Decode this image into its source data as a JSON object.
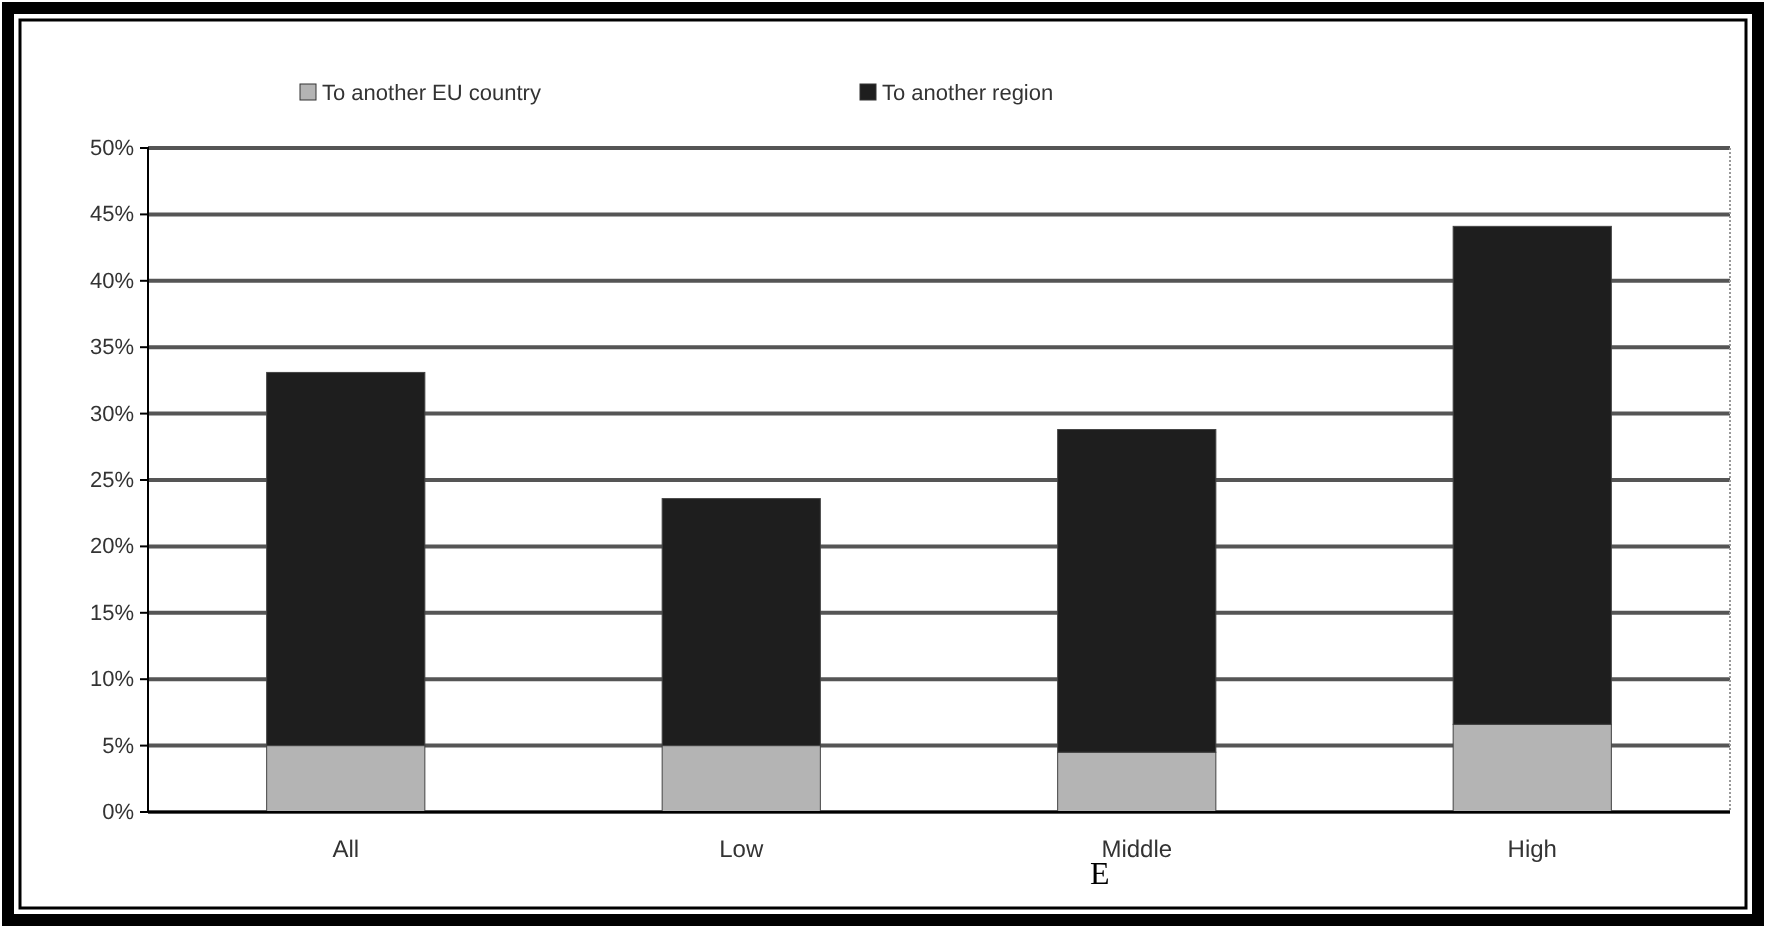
{
  "chart_data": {
    "type": "bar",
    "stacked": true,
    "categories": [
      "All",
      "Low",
      "Middle",
      "High"
    ],
    "series": [
      {
        "name": "To another EU country",
        "color": "#b4b4b4",
        "values": [
          5,
          5,
          4.5,
          6.6
        ]
      },
      {
        "name": "To another region",
        "color": "#1e1e1e",
        "values": [
          28.1,
          18.6,
          24.3,
          37.5
        ]
      }
    ],
    "ylim": [
      0,
      50
    ],
    "yticks": [
      {
        "value": 0,
        "label": "0%"
      },
      {
        "value": 5,
        "label": "5%"
      },
      {
        "value": 10,
        "label": "10%"
      },
      {
        "value": 15,
        "label": "15%"
      },
      {
        "value": 20,
        "label": "20%"
      },
      {
        "value": 25,
        "label": "25%"
      },
      {
        "value": 30,
        "label": "30%"
      },
      {
        "value": 35,
        "label": "35%"
      },
      {
        "value": 40,
        "label": "40%"
      },
      {
        "value": 45,
        "label": "45%"
      },
      {
        "value": 50,
        "label": "50%"
      }
    ],
    "grid": "y",
    "legend": "top",
    "annotations": [
      "E"
    ]
  }
}
